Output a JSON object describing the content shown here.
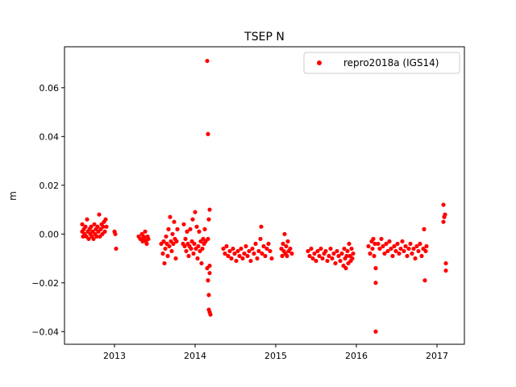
{
  "chart_data": {
    "type": "scatter",
    "title": "TSEP N",
    "xlabel": "",
    "ylabel": "m",
    "xlim": [
      2012.38,
      2017.34
    ],
    "ylim": [
      -0.0452,
      0.0768
    ],
    "x_ticks": [
      {
        "value": 2013,
        "label": "2013"
      },
      {
        "value": 2014,
        "label": "2014"
      },
      {
        "value": 2015,
        "label": "2015"
      },
      {
        "value": 2016,
        "label": "2016"
      },
      {
        "value": 2017,
        "label": "2017"
      }
    ],
    "y_ticks": [
      {
        "value": -0.04,
        "label": "−0.04"
      },
      {
        "value": -0.02,
        "label": "−0.02"
      },
      {
        "value": 0.0,
        "label": "0.00"
      },
      {
        "value": 0.02,
        "label": "0.02"
      },
      {
        "value": 0.04,
        "label": "0.04"
      },
      {
        "value": 0.06,
        "label": "0.06"
      }
    ],
    "grid": false,
    "legend_position": "top-right",
    "series": [
      {
        "name": "repro2018a (IGS14)",
        "color": "#ff0000",
        "marker": "circle",
        "points": [
          [
            2012.6,
            0.004
          ],
          [
            2012.6,
            0.001
          ],
          [
            2012.61,
            -0.001
          ],
          [
            2012.62,
            0.002
          ],
          [
            2012.63,
            0.0
          ],
          [
            2012.64,
            0.003
          ],
          [
            2012.65,
            -0.001
          ],
          [
            2012.66,
            0.006
          ],
          [
            2012.67,
            0.001
          ],
          [
            2012.68,
            -0.002
          ],
          [
            2012.69,
            0.002
          ],
          [
            2012.7,
            0.0
          ],
          [
            2012.71,
            0.003
          ],
          [
            2012.72,
            -0.001
          ],
          [
            2012.73,
            0.001
          ],
          [
            2012.74,
            -0.002
          ],
          [
            2012.75,
            0.004
          ],
          [
            2012.76,
            0.0
          ],
          [
            2012.77,
            0.002
          ],
          [
            2012.78,
            -0.001
          ],
          [
            2012.79,
            0.003
          ],
          [
            2012.8,
            0.001
          ],
          [
            2012.81,
            0.008
          ],
          [
            2012.82,
            -0.001
          ],
          [
            2012.83,
            0.002
          ],
          [
            2012.84,
            0.004
          ],
          [
            2012.85,
            0.0
          ],
          [
            2012.86,
            0.003
          ],
          [
            2012.87,
            0.005
          ],
          [
            2012.88,
            0.001
          ],
          [
            2012.89,
            0.006
          ],
          [
            2012.9,
            0.003
          ],
          [
            2013.0,
            0.001
          ],
          [
            2013.01,
            0.0
          ],
          [
            2013.02,
            -0.006
          ],
          [
            2013.3,
            -0.001
          ],
          [
            2013.32,
            -0.002
          ],
          [
            2013.34,
            0.0
          ],
          [
            2013.35,
            -0.003
          ],
          [
            2013.36,
            -0.001
          ],
          [
            2013.37,
            -0.002
          ],
          [
            2013.38,
            0.001
          ],
          [
            2013.39,
            -0.003
          ],
          [
            2013.4,
            -0.004
          ],
          [
            2013.41,
            -0.001
          ],
          [
            2013.42,
            -0.002
          ],
          [
            2013.58,
            -0.004
          ],
          [
            2013.6,
            -0.008
          ],
          [
            2013.61,
            -0.003
          ],
          [
            2013.62,
            -0.012
          ],
          [
            2013.63,
            -0.006
          ],
          [
            2013.64,
            -0.001
          ],
          [
            2013.65,
            -0.004
          ],
          [
            2013.66,
            -0.009
          ],
          [
            2013.67,
            0.002
          ],
          [
            2013.68,
            -0.005
          ],
          [
            2013.69,
            0.007
          ],
          [
            2013.7,
            -0.003
          ],
          [
            2013.71,
            -0.007
          ],
          [
            2013.72,
            0.0
          ],
          [
            2013.73,
            -0.004
          ],
          [
            2013.74,
            0.005
          ],
          [
            2013.75,
            -0.002
          ],
          [
            2013.76,
            -0.01
          ],
          [
            2013.77,
            -0.003
          ],
          [
            2013.78,
            0.002
          ],
          [
            2013.85,
            -0.004
          ],
          [
            2013.86,
            0.004
          ],
          [
            2013.87,
            -0.005
          ],
          [
            2013.88,
            -0.002
          ],
          [
            2013.89,
            -0.007
          ],
          [
            2013.9,
            0.001
          ],
          [
            2013.91,
            -0.004
          ],
          [
            2013.92,
            -0.009
          ],
          [
            2013.93,
            -0.005
          ],
          [
            2013.94,
            0.002
          ],
          [
            2013.95,
            -0.006
          ],
          [
            2013.96,
            -0.003
          ],
          [
            2013.97,
            0.006
          ],
          [
            2013.98,
            -0.008
          ],
          [
            2013.99,
            -0.004
          ],
          [
            2014.0,
            0.009
          ],
          [
            2014.01,
            -0.006
          ],
          [
            2014.02,
            0.003
          ],
          [
            2014.03,
            -0.01
          ],
          [
            2014.04,
            -0.005
          ],
          [
            2014.05,
            0.001
          ],
          [
            2014.06,
            -0.007
          ],
          [
            2014.07,
            -0.003
          ],
          [
            2014.08,
            -0.012
          ],
          [
            2014.09,
            -0.006
          ],
          [
            2014.1,
            -0.002
          ],
          [
            2014.11,
            -0.004
          ],
          [
            2014.12,
            0.002
          ],
          [
            2014.13,
            -0.003
          ],
          [
            2014.15,
            0.071
          ],
          [
            2014.16,
            0.041
          ],
          [
            2014.17,
            -0.031
          ],
          [
            2014.18,
            -0.032
          ],
          [
            2014.17,
            -0.025
          ],
          [
            2014.16,
            -0.019
          ],
          [
            2014.15,
            -0.014
          ],
          [
            2014.18,
            -0.013
          ],
          [
            2014.19,
            -0.033
          ],
          [
            2014.18,
            0.01
          ],
          [
            2014.17,
            0.006
          ],
          [
            2014.16,
            -0.002
          ],
          [
            2014.18,
            -0.016
          ],
          [
            2014.35,
            -0.006
          ],
          [
            2014.37,
            -0.008
          ],
          [
            2014.39,
            -0.005
          ],
          [
            2014.41,
            -0.009
          ],
          [
            2014.43,
            -0.007
          ],
          [
            2014.45,
            -0.01
          ],
          [
            2014.47,
            -0.006
          ],
          [
            2014.49,
            -0.008
          ],
          [
            2014.51,
            -0.011
          ],
          [
            2014.53,
            -0.007
          ],
          [
            2014.55,
            -0.009
          ],
          [
            2014.57,
            -0.006
          ],
          [
            2014.59,
            -0.01
          ],
          [
            2014.61,
            -0.008
          ],
          [
            2014.63,
            -0.005
          ],
          [
            2014.65,
            -0.009
          ],
          [
            2014.67,
            -0.007
          ],
          [
            2014.69,
            -0.011
          ],
          [
            2014.71,
            -0.006
          ],
          [
            2014.73,
            -0.008
          ],
          [
            2014.75,
            -0.004
          ],
          [
            2014.77,
            -0.01
          ],
          [
            2014.79,
            -0.007
          ],
          [
            2014.81,
            -0.002
          ],
          [
            2014.82,
            0.003
          ],
          [
            2014.83,
            -0.008
          ],
          [
            2014.85,
            -0.005
          ],
          [
            2014.87,
            -0.009
          ],
          [
            2014.89,
            -0.006
          ],
          [
            2014.91,
            -0.004
          ],
          [
            2014.93,
            -0.007
          ],
          [
            2014.95,
            -0.01
          ],
          [
            2015.07,
            -0.006
          ],
          [
            2015.08,
            -0.009
          ],
          [
            2015.09,
            -0.004
          ],
          [
            2015.1,
            -0.007
          ],
          [
            2015.11,
            0.0
          ],
          [
            2015.12,
            -0.008
          ],
          [
            2015.13,
            -0.005
          ],
          [
            2015.14,
            -0.009
          ],
          [
            2015.15,
            -0.003
          ],
          [
            2015.16,
            -0.007
          ],
          [
            2015.18,
            -0.006
          ],
          [
            2015.2,
            -0.008
          ],
          [
            2015.4,
            -0.007
          ],
          [
            2015.42,
            -0.009
          ],
          [
            2015.44,
            -0.006
          ],
          [
            2015.46,
            -0.01
          ],
          [
            2015.48,
            -0.008
          ],
          [
            2015.5,
            -0.011
          ],
          [
            2015.52,
            -0.007
          ],
          [
            2015.54,
            -0.009
          ],
          [
            2015.56,
            -0.006
          ],
          [
            2015.58,
            -0.01
          ],
          [
            2015.6,
            -0.008
          ],
          [
            2015.62,
            -0.007
          ],
          [
            2015.64,
            -0.011
          ],
          [
            2015.66,
            -0.009
          ],
          [
            2015.68,
            -0.006
          ],
          [
            2015.7,
            -0.01
          ],
          [
            2015.72,
            -0.008
          ],
          [
            2015.74,
            -0.012
          ],
          [
            2015.76,
            -0.007
          ],
          [
            2015.78,
            -0.009
          ],
          [
            2015.8,
            -0.011
          ],
          [
            2015.82,
            -0.008
          ],
          [
            2015.84,
            -0.013
          ],
          [
            2015.85,
            -0.006
          ],
          [
            2015.86,
            -0.01
          ],
          [
            2015.87,
            -0.014
          ],
          [
            2015.88,
            -0.009
          ],
          [
            2015.89,
            -0.007
          ],
          [
            2015.9,
            -0.012
          ],
          [
            2015.91,
            -0.004
          ],
          [
            2015.92,
            -0.009
          ],
          [
            2015.93,
            -0.011
          ],
          [
            2015.94,
            -0.006
          ],
          [
            2015.95,
            -0.01
          ],
          [
            2015.96,
            -0.008
          ],
          [
            2016.15,
            -0.005
          ],
          [
            2016.17,
            -0.008
          ],
          [
            2016.19,
            -0.003
          ],
          [
            2016.2,
            -0.006
          ],
          [
            2016.21,
            -0.002
          ],
          [
            2016.22,
            -0.009
          ],
          [
            2016.23,
            -0.004
          ],
          [
            2016.24,
            -0.014
          ],
          [
            2016.24,
            -0.02
          ],
          [
            2016.24,
            -0.04
          ],
          [
            2016.27,
            -0.004
          ],
          [
            2016.29,
            -0.006
          ],
          [
            2016.31,
            -0.002
          ],
          [
            2016.33,
            -0.005
          ],
          [
            2016.35,
            -0.008
          ],
          [
            2016.37,
            -0.004
          ],
          [
            2016.39,
            -0.007
          ],
          [
            2016.41,
            -0.003
          ],
          [
            2016.43,
            -0.006
          ],
          [
            2016.45,
            -0.009
          ],
          [
            2016.47,
            -0.005
          ],
          [
            2016.49,
            -0.007
          ],
          [
            2016.51,
            -0.004
          ],
          [
            2016.53,
            -0.008
          ],
          [
            2016.55,
            -0.006
          ],
          [
            2016.57,
            -0.003
          ],
          [
            2016.59,
            -0.007
          ],
          [
            2016.61,
            -0.005
          ],
          [
            2016.63,
            -0.009
          ],
          [
            2016.65,
            -0.006
          ],
          [
            2016.67,
            -0.004
          ],
          [
            2016.69,
            -0.008
          ],
          [
            2016.71,
            -0.006
          ],
          [
            2016.73,
            -0.01
          ],
          [
            2016.75,
            -0.005
          ],
          [
            2016.77,
            -0.007
          ],
          [
            2016.79,
            -0.004
          ],
          [
            2016.81,
            -0.009
          ],
          [
            2016.83,
            -0.006
          ],
          [
            2016.84,
            0.002
          ],
          [
            2016.85,
            -0.019
          ],
          [
            2016.86,
            -0.007
          ],
          [
            2016.87,
            -0.005
          ],
          [
            2017.08,
            0.012
          ],
          [
            2017.09,
            0.007
          ],
          [
            2017.08,
            0.005
          ],
          [
            2017.1,
            0.008
          ],
          [
            2017.11,
            -0.012
          ],
          [
            2017.11,
            -0.015
          ]
        ]
      }
    ]
  }
}
